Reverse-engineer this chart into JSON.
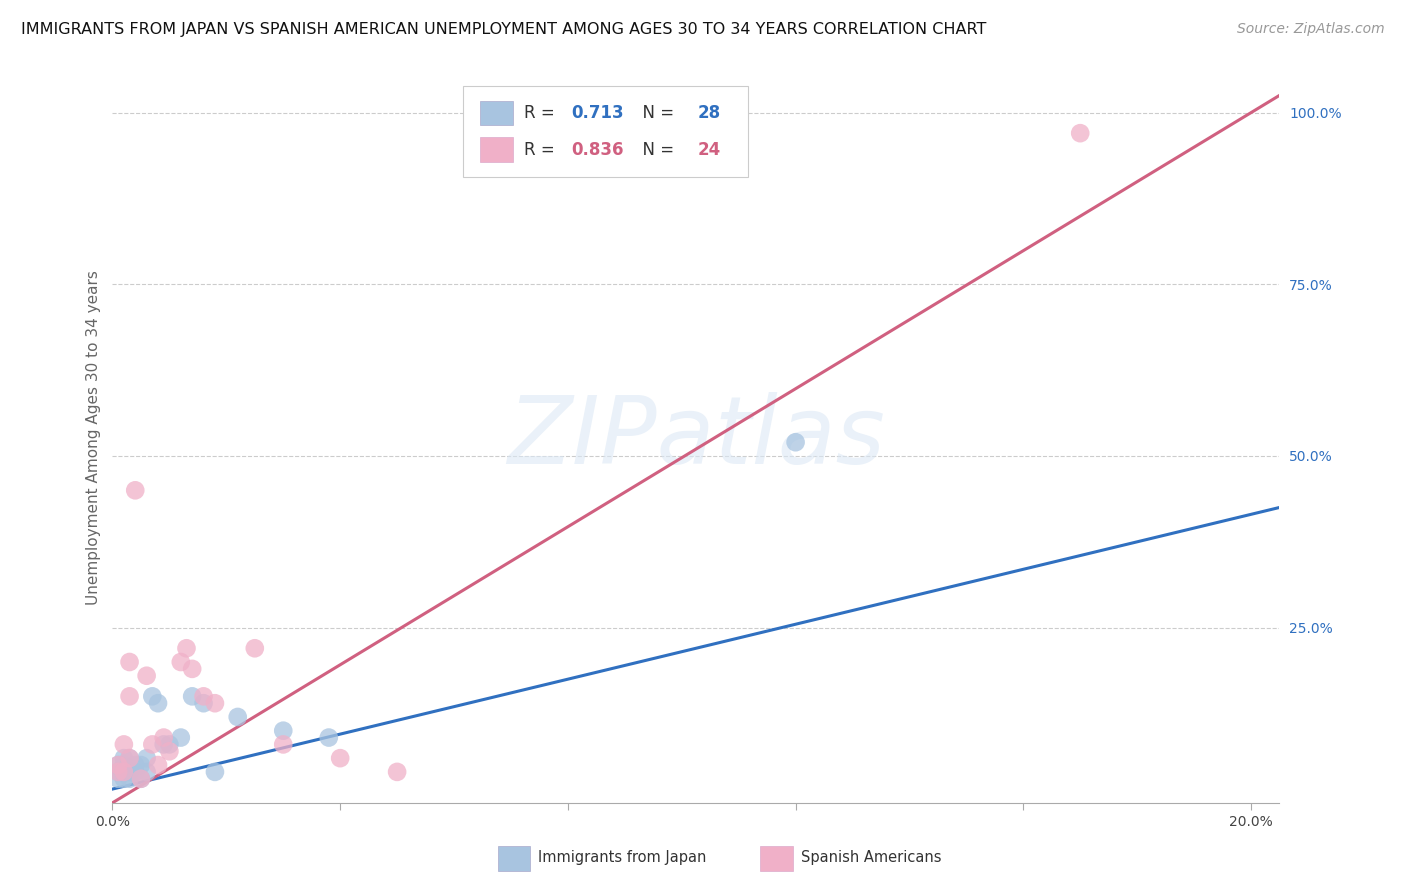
{
  "title": "IMMIGRANTS FROM JAPAN VS SPANISH AMERICAN UNEMPLOYMENT AMONG AGES 30 TO 34 YEARS CORRELATION CHART",
  "source": "Source: ZipAtlas.com",
  "ylabel": "Unemployment Among Ages 30 to 34 years",
  "background_color": "#ffffff",
  "xlim": [
    0.0,
    0.205
  ],
  "ylim": [
    -0.005,
    1.06
  ],
  "xticks": [
    0.0,
    0.04,
    0.08,
    0.12,
    0.16,
    0.2
  ],
  "xticklabels": [
    "0.0%",
    "",
    "",
    "",
    "",
    "20.0%"
  ],
  "yticks_right": [
    0.0,
    0.25,
    0.5,
    0.75,
    1.0
  ],
  "ytick_right_labels": [
    "",
    "25.0%",
    "50.0%",
    "75.0%",
    "100.0%"
  ],
  "grid_color": "#cccccc",
  "japan_R": 0.713,
  "japan_N": 28,
  "spanish_R": 0.836,
  "spanish_N": 24,
  "japan_color": "#a8c4e0",
  "spanish_color": "#f0b0c8",
  "japan_line_color": "#3070c0",
  "spanish_line_color": "#d06080",
  "japan_scatter_x": [
    0.001,
    0.001,
    0.001,
    0.002,
    0.002,
    0.002,
    0.002,
    0.003,
    0.003,
    0.003,
    0.004,
    0.004,
    0.005,
    0.005,
    0.006,
    0.006,
    0.007,
    0.008,
    0.009,
    0.01,
    0.012,
    0.014,
    0.016,
    0.018,
    0.022,
    0.03,
    0.038,
    0.12
  ],
  "japan_scatter_y": [
    0.03,
    0.04,
    0.05,
    0.03,
    0.04,
    0.05,
    0.06,
    0.03,
    0.04,
    0.06,
    0.04,
    0.05,
    0.03,
    0.05,
    0.04,
    0.06,
    0.15,
    0.14,
    0.08,
    0.08,
    0.09,
    0.15,
    0.14,
    0.04,
    0.12,
    0.1,
    0.09,
    0.52
  ],
  "spanish_scatter_x": [
    0.001,
    0.001,
    0.002,
    0.002,
    0.003,
    0.003,
    0.003,
    0.004,
    0.005,
    0.006,
    0.007,
    0.008,
    0.009,
    0.01,
    0.012,
    0.013,
    0.014,
    0.016,
    0.018,
    0.025,
    0.03,
    0.04,
    0.05,
    0.17
  ],
  "spanish_scatter_y": [
    0.04,
    0.05,
    0.04,
    0.08,
    0.06,
    0.15,
    0.2,
    0.45,
    0.03,
    0.18,
    0.08,
    0.05,
    0.09,
    0.07,
    0.2,
    0.22,
    0.19,
    0.15,
    0.14,
    0.22,
    0.08,
    0.06,
    0.04,
    0.97
  ],
  "japan_line_x0": 0.0,
  "japan_line_x1": 0.205,
  "japan_line_y0": 0.015,
  "japan_line_y1": 0.425,
  "spanish_line_x0": 0.0,
  "spanish_line_x1": 0.205,
  "spanish_line_y0": -0.005,
  "spanish_line_y1": 1.025,
  "watermark_text": "ZIPatlas",
  "title_fontsize": 11.5,
  "source_fontsize": 10,
  "axis_label_fontsize": 11,
  "tick_fontsize": 10,
  "legend_label_japan": "Immigrants from Japan",
  "legend_label_spanish": "Spanish Americans"
}
